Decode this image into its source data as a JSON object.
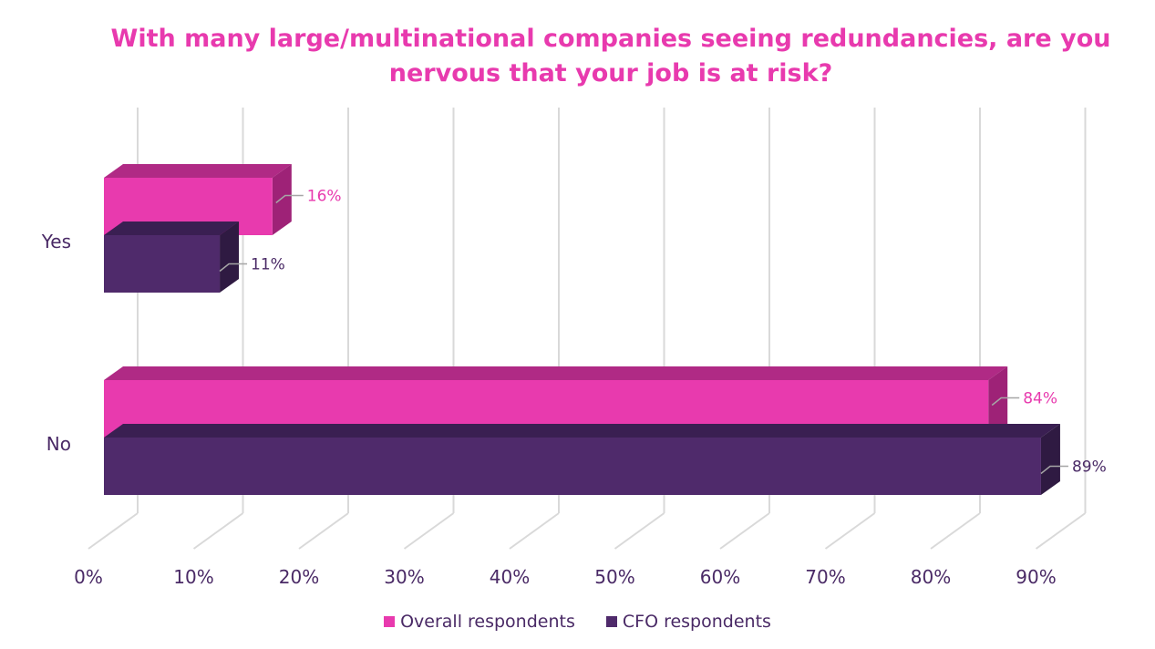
{
  "chart_data": {
    "type": "bar",
    "orientation": "horizontal",
    "style": "3d",
    "title": "With many large/multinational companies seeing redundancies, are you nervous that your job is at risk?",
    "categories": [
      "Yes",
      "No"
    ],
    "series": [
      {
        "name": "Overall respondents",
        "values": [
          16,
          84
        ],
        "labels": [
          "16%",
          "84%"
        ],
        "color": "#e83aae",
        "top_color": "#b02a85",
        "side_color": "#9e2277"
      },
      {
        "name": "CFO respondents",
        "values": [
          11,
          89
        ],
        "labels": [
          "11%",
          "89%"
        ],
        "color": "#4f2a6b",
        "top_color": "#3a1f52",
        "side_color": "#2f1a42"
      }
    ],
    "x_ticks": [
      "0%",
      "10%",
      "20%",
      "30%",
      "40%",
      "50%",
      "60%",
      "70%",
      "80%",
      "90%"
    ],
    "xlim": [
      0,
      90
    ],
    "grid": true,
    "legend_position": "bottom",
    "title_color": "#e83aae",
    "text_color": "#4a2a66",
    "grid_color": "#d9d9d9",
    "leader_color": "#a6a6a6"
  }
}
